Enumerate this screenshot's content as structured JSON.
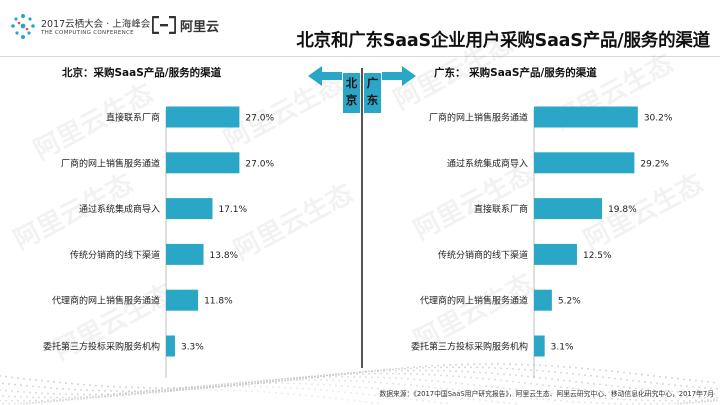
{
  "header": {
    "conference_line1": "2017云栖大会 · 上海峰会",
    "conference_line2": "THE COMPUTING CONFERENCE",
    "brand": "阿里云",
    "title": "北京和广东SaaS企业用户采购SaaS产品/服务的渠道"
  },
  "regions": {
    "left": "北京",
    "right": "广东"
  },
  "watermark": "阿里云生态",
  "footer": "数据来源：《2017中国SaaS用户研究报告》，阿里云生态、阿里云研究中心、移动信息化研究中心，2017年7月",
  "colors": {
    "bar": "#2aa7c6",
    "accent": "#2aa7c6"
  },
  "chart_data": [
    {
      "type": "bar",
      "orientation": "horizontal",
      "title": "北京：采购SaaS产品/服务的渠道",
      "categories": [
        "直接联系厂商",
        "厂商的网上销售服务通道",
        "通过系统集成商导入",
        "传统分销商的线下渠道",
        "代理商的网上销售服务通道",
        "委托第三方投标采购服务机构"
      ],
      "values": [
        27.0,
        27.0,
        17.1,
        13.8,
        11.8,
        3.3
      ],
      "value_labels": [
        "27.0%",
        "27.0%",
        "17.1%",
        "13.8%",
        "11.8%",
        "3.3%"
      ],
      "xlim": [
        0,
        32
      ],
      "unit": "%"
    },
    {
      "type": "bar",
      "orientation": "horizontal",
      "title": "广东： 采购SaaS产品/服务的渠道",
      "categories": [
        "厂商的网上销售服务通道",
        "通过系统集成商导入",
        "直接联系厂商",
        "传统分销商的线下渠道",
        "代理商的网上销售服务通道",
        "委托第三方投标采购服务机构"
      ],
      "values": [
        30.2,
        29.2,
        19.8,
        12.5,
        5.2,
        3.1
      ],
      "value_labels": [
        "30.2%",
        "29.2%",
        "19.8%",
        "12.5%",
        "5.2%",
        "3.1%"
      ],
      "xlim": [
        0,
        32
      ],
      "unit": "%"
    }
  ]
}
